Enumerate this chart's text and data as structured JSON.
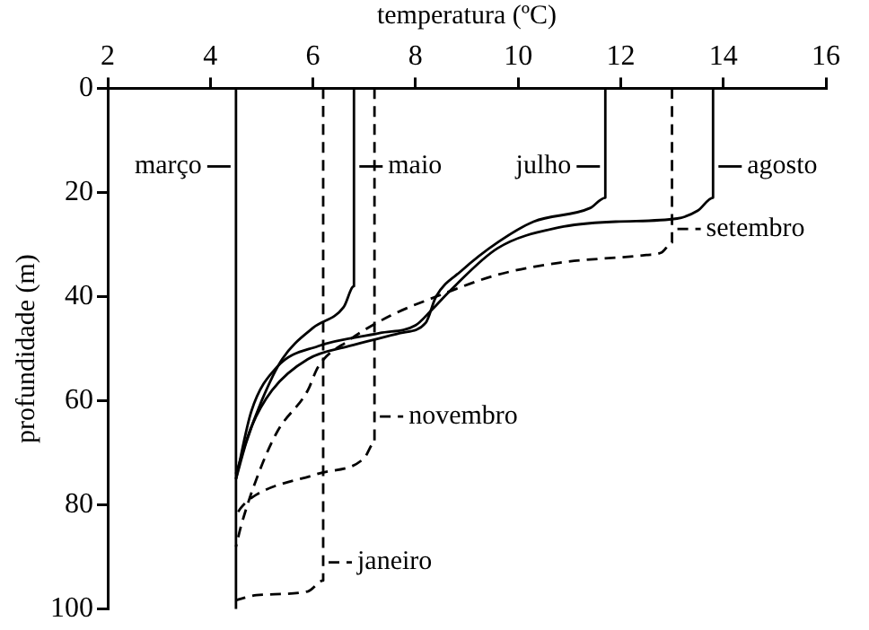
{
  "chart_data": {
    "type": "line",
    "xlabel": "temperatura (ºC)",
    "ylabel": "profundidade (m)",
    "xlim": [
      2,
      16
    ],
    "xticks": [
      2,
      4,
      6,
      8,
      10,
      12,
      14,
      16
    ],
    "ylim": [
      100,
      0
    ],
    "yticks": [
      0,
      20,
      40,
      60,
      80,
      100
    ],
    "grid": false,
    "legend": "right",
    "marker": "none",
    "series": [
      {
        "name": "março",
        "color": "#000000",
        "line_style": "solid",
        "x": [
          4.5,
          4.5
        ],
        "values": [
          0,
          100
        ]
      },
      {
        "name": "maio",
        "color": "#000000",
        "line_style": "solid",
        "x": [
          6.8,
          6.8,
          6.6,
          6.0,
          5.4,
          5.0,
          4.7,
          4.5
        ],
        "values": [
          0,
          38,
          42,
          46,
          52,
          60,
          68,
          75
        ]
      },
      {
        "name": "julho",
        "color": "#000000",
        "line_style": "solid",
        "x": [
          11.7,
          11.7,
          11.4,
          10.3,
          9.6,
          8.9,
          8.4,
          8.2,
          7.7,
          6.7,
          5.9,
          5.2,
          4.8,
          4.5
        ],
        "values": [
          0,
          21,
          23,
          25.6,
          29.6,
          35,
          40,
          45,
          47,
          49.5,
          52,
          58,
          65,
          74
        ]
      },
      {
        "name": "agosto",
        "color": "#000000",
        "line_style": "solid",
        "x": [
          13.8,
          13.8,
          13.5,
          13.1,
          11.9,
          10.8,
          9.6,
          8.7,
          8.3,
          8.0,
          7.3,
          6.1,
          5.3,
          4.8,
          4.5
        ],
        "values": [
          0,
          21,
          23.5,
          25,
          25.6,
          26.7,
          30.7,
          38.6,
          42.7,
          45.5,
          47,
          49.5,
          53.5,
          62,
          75
        ]
      },
      {
        "name": "setembro",
        "color": "#000000",
        "line_style": "dashed",
        "x": [
          13.0,
          13.0,
          12.8,
          12.5,
          10.8,
          9.6,
          8.4,
          7.5,
          6.7,
          6.1,
          5.9,
          5.3,
          4.9,
          4.6,
          4.5
        ],
        "values": [
          0,
          29.6,
          31.5,
          32,
          33.5,
          35.8,
          40,
          43.7,
          48.4,
          53.5,
          58,
          66,
          75,
          84,
          88
        ]
      },
      {
        "name": "novembro",
        "color": "#000000",
        "line_style": "dashed",
        "x": [
          7.2,
          7.2,
          7.0,
          6.1,
          4.9,
          4.6,
          4.5
        ],
        "values": [
          0,
          68,
          71,
          74,
          78,
          80.5,
          82
        ]
      },
      {
        "name": "janeiro",
        "color": "#000000",
        "line_style": "dashed",
        "x": [
          6.2,
          6.2,
          5.9,
          4.9,
          4.5
        ],
        "values": [
          0,
          94.5,
          96.6,
          97.3,
          98.3
        ]
      }
    ]
  }
}
